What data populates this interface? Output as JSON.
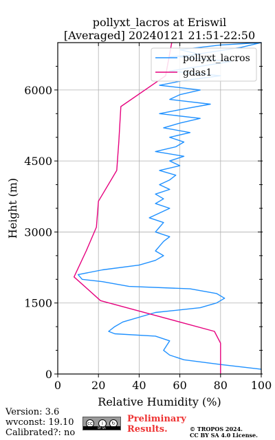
{
  "chart_data": {
    "type": "line",
    "title_line1": "pollyxt_lacros at Eriswil",
    "title_line2": "[Averaged] 20240121 21:51-22:50",
    "xlabel": "Relative Humidity (%)",
    "ylabel": "Height (m)",
    "xlim": [
      0,
      100
    ],
    "ylim": [
      0,
      7000
    ],
    "xticks": [
      0,
      20,
      40,
      60,
      80,
      100
    ],
    "yticks": [
      0,
      1500,
      3000,
      4500,
      6000
    ],
    "grid": true,
    "legend_position": "top-right",
    "series": [
      {
        "name": "pollyxt_lacros",
        "color": "#1e90ff",
        "x": [
          100,
          80,
          62,
          55,
          52,
          55,
          48,
          28,
          25,
          28,
          32,
          48,
          70,
          78,
          82,
          78,
          65,
          35,
          22,
          12,
          10,
          22,
          40,
          48,
          52,
          48,
          50,
          52,
          55,
          48,
          50,
          52,
          45,
          50,
          55,
          48,
          52,
          48,
          55,
          50,
          55,
          58,
          50,
          60,
          55,
          62,
          48,
          58,
          62,
          55,
          65,
          52,
          60,
          70,
          50,
          62,
          75,
          55,
          60,
          70,
          50,
          62,
          80,
          55,
          70,
          85,
          60,
          75,
          90,
          100,
          80,
          60,
          70,
          55
        ],
        "y": [
          100,
          200,
          300,
          400,
          500,
          700,
          800,
          850,
          900,
          1000,
          1100,
          1300,
          1400,
          1500,
          1600,
          1700,
          1800,
          1850,
          1950,
          2000,
          2100,
          2200,
          2300,
          2400,
          2500,
          2600,
          2700,
          2800,
          2900,
          3000,
          3100,
          3200,
          3300,
          3400,
          3500,
          3600,
          3700,
          3800,
          3900,
          4000,
          4100,
          4200,
          4300,
          4400,
          4500,
          4600,
          4700,
          4800,
          4900,
          5000,
          5100,
          5200,
          5300,
          5400,
          5500,
          5600,
          5700,
          5800,
          5900,
          6000,
          6100,
          6200,
          6300,
          6400,
          6500,
          6600,
          6700,
          6800,
          6900,
          7000,
          6950,
          6850,
          6750,
          6700
        ]
      },
      {
        "name": "gdas1",
        "color": "#e6007e",
        "x": [
          80,
          80,
          77,
          21,
          8,
          14,
          19,
          20,
          29,
          30,
          31,
          53,
          56
        ],
        "y": [
          0,
          650,
          900,
          1550,
          2050,
          2600,
          3100,
          3650,
          4300,
          4900,
          5650,
          6300,
          7000
        ]
      }
    ]
  },
  "footer": {
    "version": "Version: 3.6",
    "wvconst": "wvconst:  19.10",
    "calibrated": "Calibrated?: no",
    "preliminary_line1": "Preliminary",
    "preliminary_line2": "Results.",
    "copyright_line1": "© TROPOS 2024.",
    "copyright_line2": "CC BY SA 4.0 License.",
    "badge_text": "BY  SA"
  }
}
